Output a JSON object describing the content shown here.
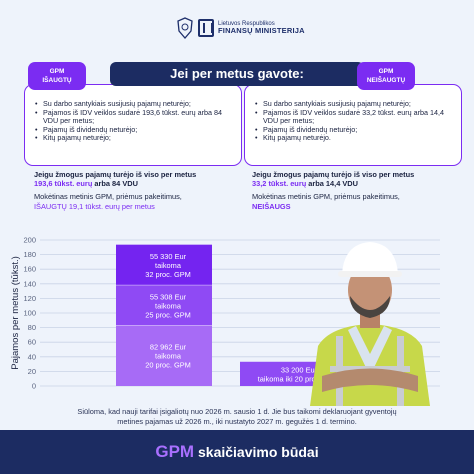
{
  "header": {
    "org_line1": "Lietuvos Respublikos",
    "org_line2": "FINANSŲ MINISTERIJA"
  },
  "banner": {
    "title": "Jei per metus gavote:",
    "left_pill": [
      "GPM",
      "IŠAUGTŲ"
    ],
    "right_pill": [
      "GPM",
      "NEIŠAUGTŲ"
    ]
  },
  "left_box": {
    "items": [
      "Su darbo santykiais susijusių pajamų neturėjo;",
      "Pajamos iš IDV veiklos sudarė 193,6 tūkst. eurų arba 84 VDU per metus;",
      "Pajamų iš dividendų neturėjo;",
      "Kitų pajamų neturėjo;"
    ]
  },
  "right_box": {
    "items": [
      "Su darbo santykiais susijusių pajamų neturėjo;",
      "Pajamos iš IDV veiklos sudarė 33,2 tūkst. eurų arba 14,4 VDU per metus;",
      "Pajamų iš dividendų neturėjo;",
      "Kitų pajamų neturėjo."
    ]
  },
  "left_summary": {
    "line1": "Jeigu žmogus pajamų turėjo iš viso per metus",
    "amount": "193,6 tūkst. eurų",
    "amount_suffix": " arba 84 VDU",
    "line3": "Mokėtinas metinis GPM, priėmus pakeitimus,",
    "result": "IŠAUGTŲ 19,1 tūkst. eurų per metus"
  },
  "right_summary": {
    "line1": "Jeigu žmogus pajamų turėjo iš viso per metus",
    "amount": "33,2 tūkst. eurų",
    "amount_suffix": " arba 14,4 VDU",
    "line3": "Mokėtinas metinis GPM, priėmus pakeitimus,",
    "result": "NEIŠAUGS"
  },
  "chart_data": {
    "type": "bar",
    "ylabel": "Pajamos per metus (tūkst.)",
    "ylim": [
      0,
      200
    ],
    "yticks": [
      0,
      20,
      40,
      60,
      80,
      100,
      120,
      140,
      160,
      180,
      200
    ],
    "bars": [
      {
        "segments": [
          {
            "value": 82.962,
            "label": [
              "82 962 Eur",
              "taikoma",
              "20 proc. GPM"
            ],
            "color": "#a76bf6"
          },
          {
            "value": 55.308,
            "label": [
              "55 308 Eur",
              "taikoma",
              "25 proc. GPM"
            ],
            "color": "#8f4af4"
          },
          {
            "value": 55.33,
            "label": [
              "55 330 Eur",
              "taikoma",
              "32 proc. GPM"
            ],
            "color": "#7424f0"
          }
        ]
      },
      {
        "segments": [
          {
            "value": 33.2,
            "label": [
              "33 200 Eur",
              "taikoma iki  20 proc. GPM"
            ],
            "color": "#8f4af4"
          }
        ]
      }
    ]
  },
  "footnote": {
    "line1": "Siūloma, kad nauji tarifai įsigaliotų nuo 2026 m. sausio 1 d.  Jie bus taikomi deklaruojant gyventojų",
    "line2": "metines pajamas už  2026 m., iki nustatyto 2027 m. gegužės 1 d. termino."
  },
  "footer": {
    "gpm": "GPM",
    "rest": " skaičiavimo būdai"
  },
  "colors": {
    "navy": "#1c2c62",
    "purple": "#7b2cf2",
    "background": "#eef3fb"
  }
}
